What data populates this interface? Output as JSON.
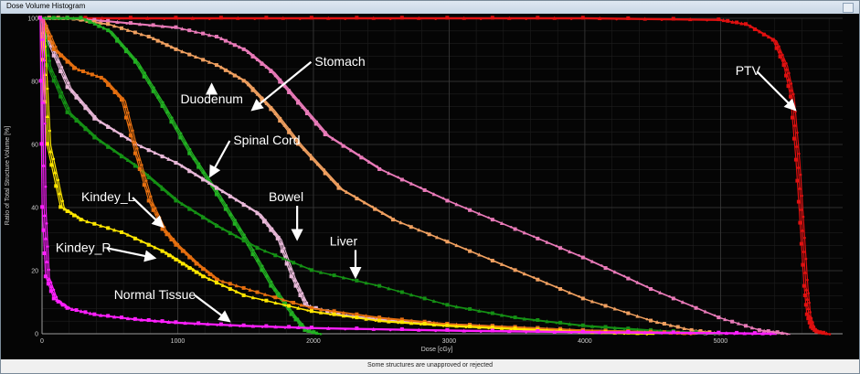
{
  "window": {
    "title": "Dose Volume Histogram"
  },
  "status": {
    "message": "Some structures are unapproved or rejected"
  },
  "colors": {
    "background": "#050505",
    "grid": "#3a3a3a",
    "axis_text": "#cfcfcf",
    "annotation": "#ffffff"
  },
  "chart_data": {
    "type": "line",
    "title": "",
    "xlabel": "Dose [cGy]",
    "ylabel": "Ratio of Total Structure Volume [%]",
    "xlim": [
      0,
      5900
    ],
    "ylim": [
      0,
      100
    ],
    "x_ticks": [
      0,
      1000,
      2000,
      3000,
      4000,
      5000
    ],
    "y_ticks": [
      0,
      20,
      40,
      60,
      80,
      100
    ],
    "grid": true,
    "legend": "none",
    "series": [
      {
        "name": "PTV",
        "color": "#e01010",
        "x": [
          0,
          1000,
          2000,
          3000,
          4000,
          5000,
          5200,
          5400,
          5480,
          5530,
          5570,
          5600,
          5630,
          5650,
          5680,
          5720,
          5800
        ],
        "y": [
          100,
          100,
          100,
          100,
          100,
          99.5,
          98,
          93,
          85,
          75,
          55,
          35,
          15,
          6,
          2,
          0.5,
          0
        ]
      },
      {
        "name": "Stomach",
        "color": "#e87ab8",
        "x": [
          0,
          200,
          500,
          1000,
          1300,
          1500,
          1700,
          1900,
          2100,
          2500,
          3000,
          3500,
          4000,
          4500,
          5000,
          5300,
          5500
        ],
        "y": [
          100,
          100,
          99,
          97,
          94,
          90,
          83,
          73,
          63,
          52,
          42,
          33,
          24,
          14,
          5,
          1,
          0
        ]
      },
      {
        "name": "Duodenum",
        "color": "#f0a060",
        "x": [
          0,
          200,
          500,
          800,
          1000,
          1300,
          1500,
          1700,
          1900,
          2200,
          2600,
          3000,
          3500,
          4000,
          4500,
          4800,
          5000
        ],
        "y": [
          100,
          100,
          98,
          94,
          90,
          85,
          80,
          71,
          60,
          46,
          36,
          29,
          20,
          11,
          4,
          1,
          0
        ]
      },
      {
        "name": "Spinal Cord",
        "color": "#22b022",
        "x": [
          0,
          300,
          500,
          700,
          900,
          1100,
          1300,
          1500,
          1700,
          1850,
          1950,
          2050
        ],
        "y": [
          100,
          100,
          96,
          86,
          72,
          57,
          44,
          30,
          15,
          6,
          1,
          0
        ]
      },
      {
        "name": "Bowel",
        "color": "#e8b8d8",
        "x": [
          0,
          50,
          200,
          400,
          700,
          1000,
          1300,
          1600,
          1750,
          1850,
          1950,
          2200,
          2600,
          3000,
          3500,
          4000,
          4500,
          5000
        ],
        "y": [
          100,
          93,
          78,
          68,
          60,
          54,
          46,
          38,
          30,
          18,
          9,
          6,
          4,
          3,
          2,
          1,
          0.5,
          0
        ]
      },
      {
        "name": "Liver",
        "color": "#159015",
        "x": [
          0,
          50,
          200,
          400,
          700,
          1000,
          1300,
          1600,
          2000,
          2500,
          3000,
          3500,
          4000,
          4500,
          5000
        ],
        "y": [
          100,
          85,
          70,
          62,
          53,
          42,
          34,
          27,
          20,
          15,
          9,
          5,
          2.5,
          1,
          0
        ]
      },
      {
        "name": "Kindey_L",
        "color": "#e56f10",
        "x": [
          0,
          100,
          250,
          450,
          600,
          700,
          800,
          900,
          1000,
          1150,
          1300,
          1600,
          2000,
          2500,
          3000,
          3500,
          4000,
          4500,
          4800
        ],
        "y": [
          100,
          90,
          84,
          81,
          74,
          57,
          42,
          33,
          28,
          22,
          17,
          13,
          8,
          5,
          3,
          2,
          1,
          0.5,
          0
        ]
      },
      {
        "name": "Kindey_R",
        "color": "#ffe600",
        "x": [
          0,
          50,
          150,
          300,
          600,
          900,
          1050,
          1200,
          1500,
          2000,
          2500,
          3000,
          3500,
          4000,
          4500
        ],
        "y": [
          100,
          60,
          40,
          36,
          32,
          26,
          22,
          18,
          12,
          7,
          4,
          2.5,
          1.5,
          0.5,
          0
        ]
      },
      {
        "name": "Normal Tissue",
        "color": "#ff20ff",
        "x": [
          0,
          15,
          40,
          100,
          200,
          400,
          700,
          1000,
          1500,
          2000,
          3000,
          4000,
          5000,
          5400
        ],
        "y": [
          100,
          40,
          18,
          11,
          8,
          6,
          4.5,
          3.5,
          2.5,
          1.8,
          1,
          0.5,
          0.2,
          0
        ]
      }
    ],
    "annotations": [
      {
        "text": "Stomach",
        "x": 2010,
        "y": 85,
        "ax": 1550,
        "ay": 71
      },
      {
        "text": "Duodenum",
        "x": 1020,
        "y": 73,
        "ax": 1250,
        "ay": 79
      },
      {
        "text": "Spinal Cord",
        "x": 1410,
        "y": 60,
        "ax": 1240,
        "ay": 50
      },
      {
        "text": "Bowel",
        "x": 1670,
        "y": 42,
        "ax": 1880,
        "ay": 30
      },
      {
        "text": "Liver",
        "x": 2120,
        "y": 28,
        "ax": 2310,
        "ay": 18
      },
      {
        "text": "Kindey_L",
        "x": 290,
        "y": 42,
        "ax": 890,
        "ay": 34
      },
      {
        "text": "Kindey_R",
        "x": 100,
        "y": 26,
        "ax": 830,
        "ay": 24
      },
      {
        "text": "Normal Tissue",
        "x": 530,
        "y": 11,
        "ax": 1380,
        "ay": 4
      },
      {
        "text": "PTV",
        "x": 5110,
        "y": 82,
        "ax": 5550,
        "ay": 71
      }
    ]
  }
}
